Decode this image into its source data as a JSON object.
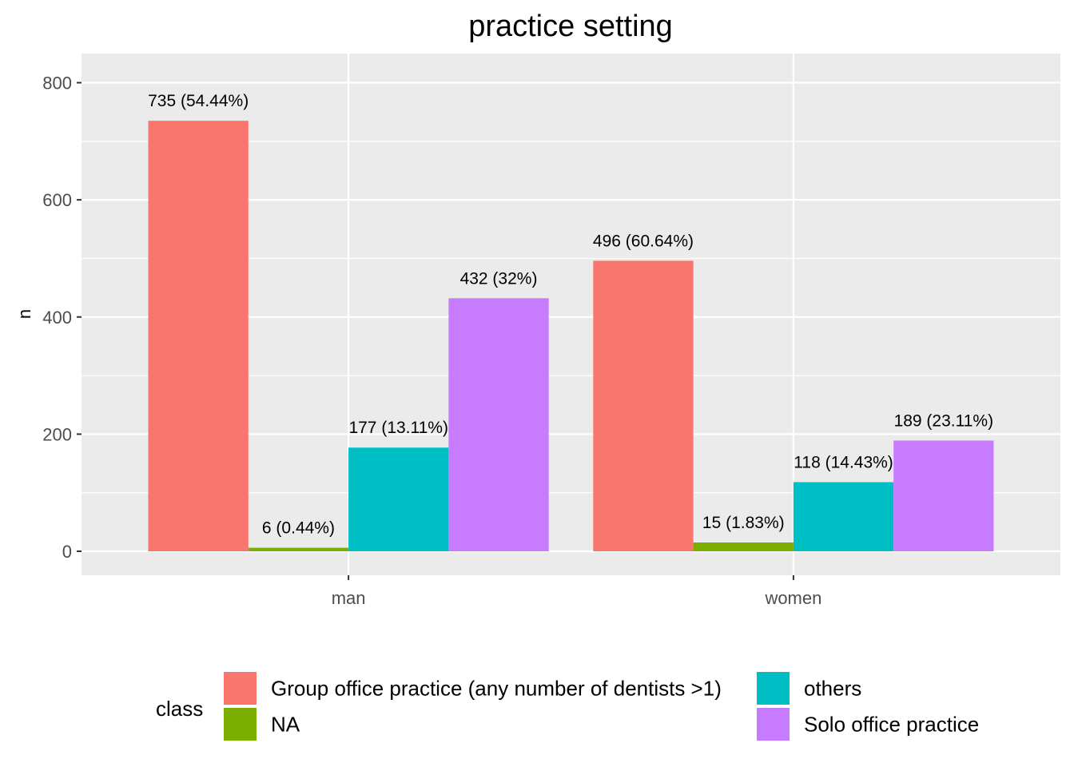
{
  "chart_data": {
    "type": "bar",
    "title": "practice setting",
    "xlabel": "",
    "ylabel": "n",
    "categories": [
      "man",
      "women"
    ],
    "ylim": [
      -50,
      850
    ],
    "yticks": [
      0,
      200,
      400,
      600,
      800
    ],
    "grid": true,
    "legend_position": "bottom",
    "legend_title": "class",
    "series": [
      {
        "name": "Group office practice (any number of dentists >1)",
        "color": "#F8766D",
        "values": [
          735,
          496
        ],
        "labels": [
          "735 (54.44%)",
          "496 (60.64%)"
        ]
      },
      {
        "name": "NA",
        "color": "#7CAE00",
        "values": [
          6,
          15
        ],
        "labels": [
          "6 (0.44%)",
          "15 (1.83%)"
        ]
      },
      {
        "name": "others",
        "color": "#00BFC4",
        "values": [
          177,
          118
        ],
        "labels": [
          "177 (13.11%)",
          "118 (14.43%)"
        ]
      },
      {
        "name": "Solo office practice",
        "color": "#C77CFF",
        "values": [
          432,
          189
        ],
        "labels": [
          "432 (32%)",
          "189 (23.11%)"
        ]
      }
    ]
  }
}
